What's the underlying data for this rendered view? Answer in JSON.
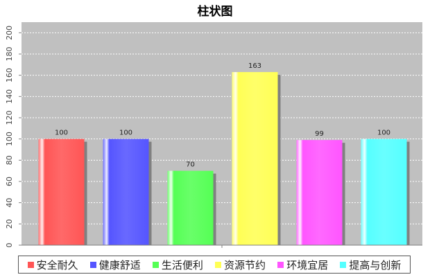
{
  "chart_data": {
    "type": "bar",
    "title": "柱状图",
    "categories": [
      "安全耐久",
      "健康舒适",
      "生活便利",
      "资源节约",
      "环境宜居",
      "提高与创新"
    ],
    "values": [
      100,
      100,
      70,
      163,
      99,
      100
    ],
    "colors": [
      "#ff5555",
      "#5555ff",
      "#55ff55",
      "#ffff55",
      "#ff55ff",
      "#55ffff"
    ],
    "ylim": [
      0,
      210
    ],
    "yticks": [
      0,
      20,
      40,
      60,
      80,
      100,
      120,
      140,
      160,
      180,
      200
    ],
    "grid": true,
    "plot_background": "#c0c0c0",
    "legend_position": "bottom"
  }
}
